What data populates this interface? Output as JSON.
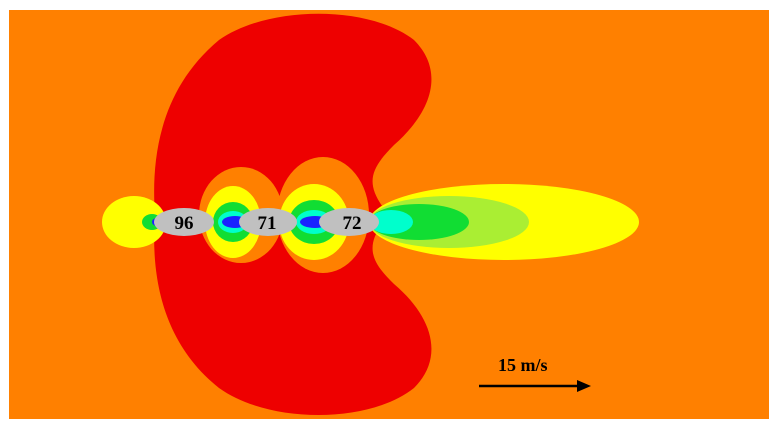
{
  "figure": {
    "colors": {
      "background": "#ff8000",
      "high": "#ee0000",
      "mid": "#ffff00",
      "mid_low": "#aaee33",
      "low": "#11dd33",
      "lower": "#00ffcc",
      "lowest": "#1a22ff",
      "obstacle": "#c0c0c0",
      "text": "#000000"
    },
    "obstacles": [
      {
        "label": "96"
      },
      {
        "label": "71"
      },
      {
        "label": "72"
      }
    ],
    "scale_label": "15 m/s"
  }
}
